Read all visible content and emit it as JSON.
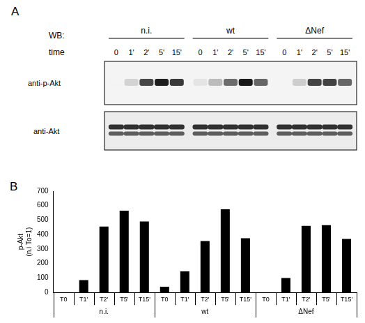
{
  "blot": {
    "panel_label": "A",
    "wb_label": "WB:",
    "time_label": "time",
    "groups": [
      "n.i.",
      "wt",
      "ΔNef"
    ],
    "times": [
      "0",
      "1'",
      "2'",
      "5'",
      "15'"
    ],
    "rows": [
      "anti-p-Akt",
      "anti-Akt"
    ]
  },
  "chart_data": {
    "type": "bar",
    "panel_label": "B",
    "y_label": [
      "p-Akt",
      "(n.i To=1)"
    ],
    "categories": [
      "T0",
      "T1'",
      "T2'",
      "T5'",
      "T15'",
      "T0",
      "T1'",
      "T2'",
      "T5'",
      "T15'",
      "T0",
      "T1'",
      "T2'",
      "T5'",
      "T15'"
    ],
    "groups": [
      "n.i.",
      "wt",
      "ΔNef"
    ],
    "values": [
      1,
      85,
      455,
      565,
      490,
      40,
      145,
      355,
      575,
      375,
      0,
      100,
      460,
      465,
      370
    ],
    "color": "#000000",
    "ylim": [
      0,
      700
    ],
    "yticks": [
      0,
      100,
      200,
      300,
      400,
      500,
      600,
      700
    ],
    "grid": false
  }
}
